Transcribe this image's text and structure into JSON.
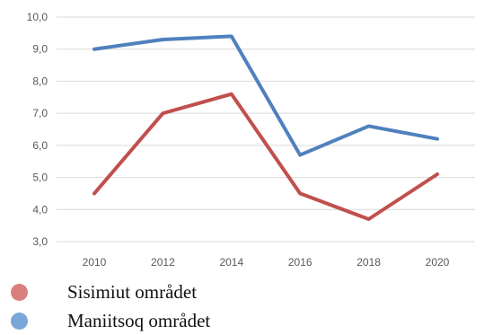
{
  "chart_data": {
    "type": "line",
    "x": [
      2010,
      2012,
      2014,
      2016,
      2018,
      2020
    ],
    "x_tick_labels": [
      "2010",
      "2012",
      "2014",
      "2016",
      "2018",
      "2020"
    ],
    "y_tick_labels": [
      "3,0",
      "4,0",
      "5,0",
      "6,0",
      "7,0",
      "8,0",
      "9,0",
      "10,0"
    ],
    "ylim": [
      3,
      10
    ],
    "y_ticks": [
      3,
      4,
      5,
      6,
      7,
      8,
      9,
      10
    ],
    "grid": true,
    "legend_position": "bottom-left",
    "series": [
      {
        "name": "Sisimiut området",
        "color": "#c0504d",
        "values": [
          4.5,
          7.0,
          7.6,
          4.5,
          3.7,
          5.1
        ]
      },
      {
        "name": "Maniitsoq området",
        "color": "#4f81bd",
        "values": [
          9.0,
          9.3,
          9.4,
          5.7,
          6.6,
          6.2
        ]
      }
    ]
  },
  "legend": {
    "items": [
      {
        "label": "Sisimiut området",
        "color": "#d9807e"
      },
      {
        "label": "Maniitsoq området",
        "color": "#7aa7d7"
      }
    ]
  }
}
